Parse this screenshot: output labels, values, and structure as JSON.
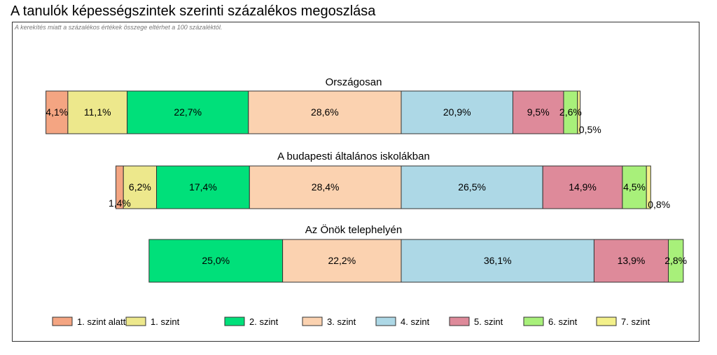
{
  "title": "A tanulók képességszintek szerinti százalékos megoszlása",
  "note": "A kerekítés miatt a százalékos értékek összege eltérhet a 100 százaléktól.",
  "chart_data": {
    "type": "bar",
    "orientation": "horizontal-stacked",
    "title": "A tanulók képességszintek szerinti százalékos megoszlása",
    "legend_position": "bottom",
    "series": [
      {
        "name": "1. szint alatti",
        "color": "#f4a582"
      },
      {
        "name": "1. szint",
        "color": "#ede88c"
      },
      {
        "name": "2. szint",
        "color": "#00e07a"
      },
      {
        "name": "3. szint",
        "color": "#fbd2b0"
      },
      {
        "name": "4. szint",
        "color": "#add8e6"
      },
      {
        "name": "5. szint",
        "color": "#de8a9a"
      },
      {
        "name": "6. szint",
        "color": "#a8f07a"
      },
      {
        "name": "7. szint",
        "color": "#f3f08a"
      }
    ],
    "groups": [
      {
        "name": "Országosan",
        "values": [
          4.1,
          11.1,
          22.7,
          28.6,
          20.9,
          9.5,
          2.6,
          0.5
        ],
        "labels": [
          "4,1%",
          "11,1%",
          "22,7%",
          "28,6%",
          "20,9%",
          "9,5%",
          "2,6%",
          "0,5%"
        ]
      },
      {
        "name": "A budapesti általános iskolákban",
        "values": [
          1.4,
          6.2,
          17.4,
          28.4,
          26.5,
          14.9,
          4.5,
          0.8
        ],
        "labels": [
          "1,4%",
          "6,2%",
          "17,4%",
          "28,4%",
          "26,5%",
          "14,9%",
          "4,5%",
          "0,8%"
        ]
      },
      {
        "name": "Az Önök telephelyén",
        "values": [
          0,
          0,
          25.0,
          22.2,
          36.1,
          13.9,
          2.8,
          0
        ],
        "labels": [
          "",
          "",
          "25,0%",
          "22,2%",
          "36,1%",
          "13,9%",
          "2,8%",
          ""
        ]
      }
    ]
  }
}
